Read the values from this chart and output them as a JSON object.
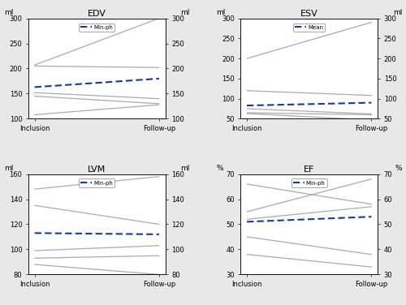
{
  "panels": [
    {
      "title": "EDV",
      "ylabel_left": "ml",
      "ylabel_right": "ml",
      "xlabel_left": "Inclusion",
      "xlabel_right": "Follow-up",
      "ylim": [
        100,
        300
      ],
      "yticks": [
        100,
        150,
        200,
        250,
        300
      ],
      "mean_line": [
        163,
        180
      ],
      "individual_lines": [
        [
          207,
          300
        ],
        [
          205,
          202
        ],
        [
          152,
          140
        ],
        [
          145,
          130
        ],
        [
          108,
          128
        ]
      ],
      "legend_label": "Min-ph"
    },
    {
      "title": "ESV",
      "ylabel_left": "ml",
      "ylabel_right": "ml",
      "xlabel_left": "Inclusion",
      "xlabel_right": "Follow-up",
      "ylim": [
        50,
        300
      ],
      "yticks": [
        50,
        100,
        150,
        200,
        250,
        300
      ],
      "mean_line": [
        83,
        90
      ],
      "individual_lines": [
        [
          200,
          290
        ],
        [
          120,
          108
        ],
        [
          75,
          62
        ],
        [
          65,
          60
        ],
        [
          63,
          47
        ]
      ],
      "legend_label": "Mean"
    },
    {
      "title": "LVM",
      "ylabel_left": "ml",
      "ylabel_right": "ml",
      "xlabel_left": "Inclusion",
      "xlabel_right": "Follow-up",
      "ylim": [
        80,
        160
      ],
      "yticks": [
        80,
        100,
        120,
        140,
        160
      ],
      "mean_line": [
        113,
        112
      ],
      "individual_lines": [
        [
          148,
          158
        ],
        [
          135,
          120
        ],
        [
          99,
          103
        ],
        [
          93,
          95
        ],
        [
          88,
          80
        ]
      ],
      "legend_label": "Min-ph"
    },
    {
      "title": "EF",
      "ylabel_left": "%",
      "ylabel_right": "%",
      "xlabel_left": "Inclusion",
      "xlabel_right": "Follow-up",
      "ylim": [
        30,
        70
      ],
      "yticks": [
        30,
        40,
        50,
        60,
        70
      ],
      "mean_line": [
        51,
        53
      ],
      "individual_lines": [
        [
          66,
          58
        ],
        [
          55,
          68
        ],
        [
          52,
          57
        ],
        [
          45,
          38
        ],
        [
          38,
          33
        ]
      ],
      "legend_label": "Min-ph"
    }
  ],
  "mean_color": "#1c3a8c",
  "individual_color": "#aaaaaa",
  "mean_linewidth": 1.5,
  "individual_linewidth": 0.9,
  "background_color": "#ffffff",
  "fig_background": "#e8e8e8"
}
